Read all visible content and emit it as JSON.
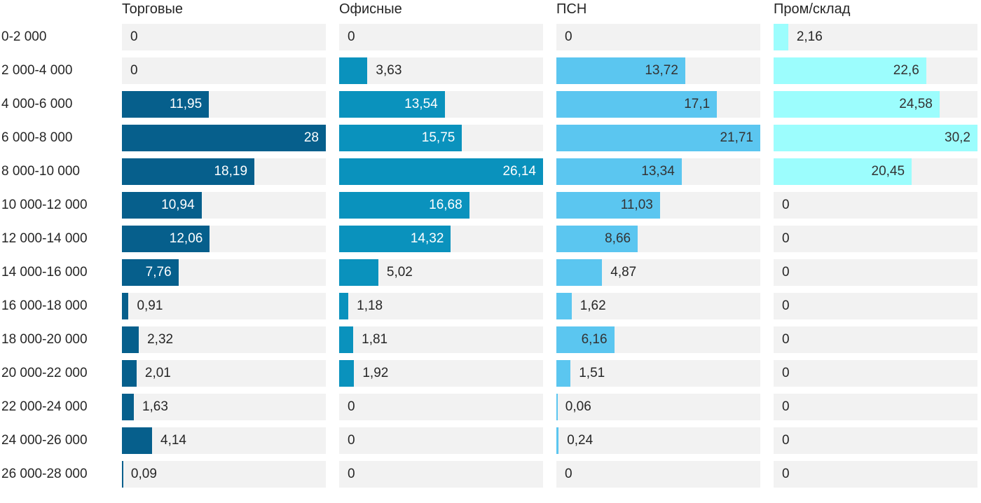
{
  "chart_data": {
    "type": "bar",
    "orientation": "horizontal",
    "title": "",
    "categories": [
      "0-2 000",
      "2 000-4 000",
      "4 000-6 000",
      "6 000-8 000",
      "8 000-10 000",
      "10 000-12 000",
      "12 000-14 000",
      "14 000-16 000",
      "16 000-18 000",
      "18 000-20 000",
      "20 000-22 000",
      "22 000-24 000",
      "24 000-26 000",
      "26 000-28 000"
    ],
    "series": [
      {
        "name": "Торговые",
        "color": "#065f8c",
        "inside_label_color": "#ffffff",
        "values": [
          0,
          0,
          11.95,
          28,
          18.19,
          10.94,
          12.06,
          7.76,
          0.91,
          2.32,
          2.01,
          1.63,
          4.14,
          0.09
        ],
        "labels": [
          "0",
          "0",
          "11,95",
          "28",
          "18,19",
          "10,94",
          "12,06",
          "7,76",
          "0,91",
          "2,32",
          "2,01",
          "1,63",
          "4,14",
          "0,09"
        ]
      },
      {
        "name": "Офисные",
        "color": "#0a92bd",
        "inside_label_color": "#ffffff",
        "values": [
          0,
          3.63,
          13.54,
          15.75,
          26.14,
          16.68,
          14.32,
          5.02,
          1.18,
          1.81,
          1.92,
          0,
          0,
          0
        ],
        "labels": [
          "0",
          "3,63",
          "13,54",
          "15,75",
          "26,14",
          "16,68",
          "14,32",
          "5,02",
          "1,18",
          "1,81",
          "1,92",
          "0",
          "0",
          "0"
        ]
      },
      {
        "name": "ПСН",
        "color": "#5bc6f0",
        "inside_label_color": "#333333",
        "values": [
          0,
          13.72,
          17.1,
          21.71,
          13.34,
          11.03,
          8.66,
          4.87,
          1.62,
          6.16,
          1.51,
          0.06,
          0.24,
          0
        ],
        "labels": [
          "0",
          "13,72",
          "17,1",
          "21,71",
          "13,34",
          "11,03",
          "8,66",
          "4,87",
          "1,62",
          "6,16",
          "1,51",
          "0,06",
          "0,24",
          "0"
        ]
      },
      {
        "name": "Пром/склад",
        "color": "#9cfdfd",
        "inside_label_color": "#333333",
        "values": [
          2.16,
          22.6,
          24.58,
          30.2,
          20.45,
          0,
          0,
          0,
          0,
          0,
          0,
          0,
          0,
          0
        ],
        "labels": [
          "2,16",
          "22,6",
          "24,58",
          "30,2",
          "20,45",
          "0",
          "0",
          "0",
          "0",
          "0",
          "0",
          "0",
          "0",
          "0"
        ]
      }
    ],
    "layout": {
      "track_color": "#f2f2f2",
      "text_color": "#262626",
      "background": "#ffffff",
      "scaling": "per-column: each column's max value spans the full track width",
      "value_labels": "inside bar right-aligned when bar is wide enough, otherwise outside to the right of bar; zero values labeled at track left edge",
      "inside_label_min_fraction": 0.26,
      "grid": false,
      "legend_position": "top-column-headers"
    }
  }
}
